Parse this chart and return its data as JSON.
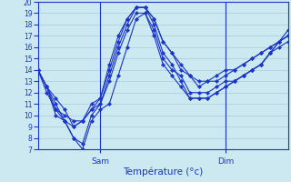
{
  "xlabel": "Température (°c)",
  "ylim": [
    7,
    20
  ],
  "yticks": [
    7,
    8,
    9,
    10,
    11,
    12,
    13,
    14,
    15,
    16,
    17,
    18,
    19,
    20
  ],
  "xlim": [
    0,
    48
  ],
  "background_color": "#cce8f0",
  "grid_color": "#a8ccd8",
  "line_color": "#1a35c8",
  "marker": "D",
  "markersize": 2.2,
  "sam_x": 12,
  "dim_x": 36,
  "series": [
    [
      14.0,
      12.5,
      11.0,
      9.5,
      9.0,
      9.5,
      10.5,
      11.5,
      14.5,
      17.0,
      18.5,
      19.5,
      19.5,
      18.5,
      16.5,
      15.5,
      14.0,
      13.5,
      12.5,
      13.0,
      13.0,
      13.5,
      14.0,
      14.5,
      15.0,
      15.5,
      16.0,
      16.5,
      17.0
    ],
    [
      14.0,
      12.5,
      10.0,
      9.5,
      8.0,
      7.5,
      10.0,
      11.0,
      13.5,
      16.0,
      18.0,
      19.5,
      19.5,
      18.0,
      15.5,
      14.5,
      13.0,
      11.5,
      11.5,
      11.5,
      12.0,
      12.5,
      13.0,
      13.5,
      14.0,
      14.5,
      15.5,
      16.5,
      17.0
    ],
    [
      14.0,
      12.5,
      10.5,
      10.0,
      9.5,
      9.5,
      10.5,
      11.0,
      13.0,
      15.5,
      17.5,
      19.0,
      19.0,
      17.5,
      15.0,
      14.0,
      13.5,
      12.0,
      12.0,
      12.0,
      12.5,
      13.0,
      13.0,
      13.5,
      14.0,
      14.5,
      15.5,
      16.5,
      17.0
    ],
    [
      14.0,
      12.0,
      10.5,
      9.5,
      8.0,
      7.0,
      9.5,
      10.5,
      11.0,
      13.5,
      16.0,
      18.5,
      19.0,
      17.0,
      14.5,
      13.5,
      12.5,
      11.5,
      11.5,
      11.5,
      12.0,
      12.5,
      13.0,
      13.5,
      14.0,
      14.5,
      15.5,
      16.0,
      16.5
    ],
    [
      14.0,
      12.5,
      11.5,
      10.5,
      9.0,
      9.5,
      11.0,
      11.5,
      14.0,
      16.5,
      18.5,
      19.5,
      19.5,
      18.5,
      16.5,
      15.5,
      14.5,
      13.5,
      13.0,
      13.0,
      13.5,
      14.0,
      14.0,
      14.5,
      15.0,
      15.5,
      16.0,
      16.5,
      17.5
    ]
  ]
}
